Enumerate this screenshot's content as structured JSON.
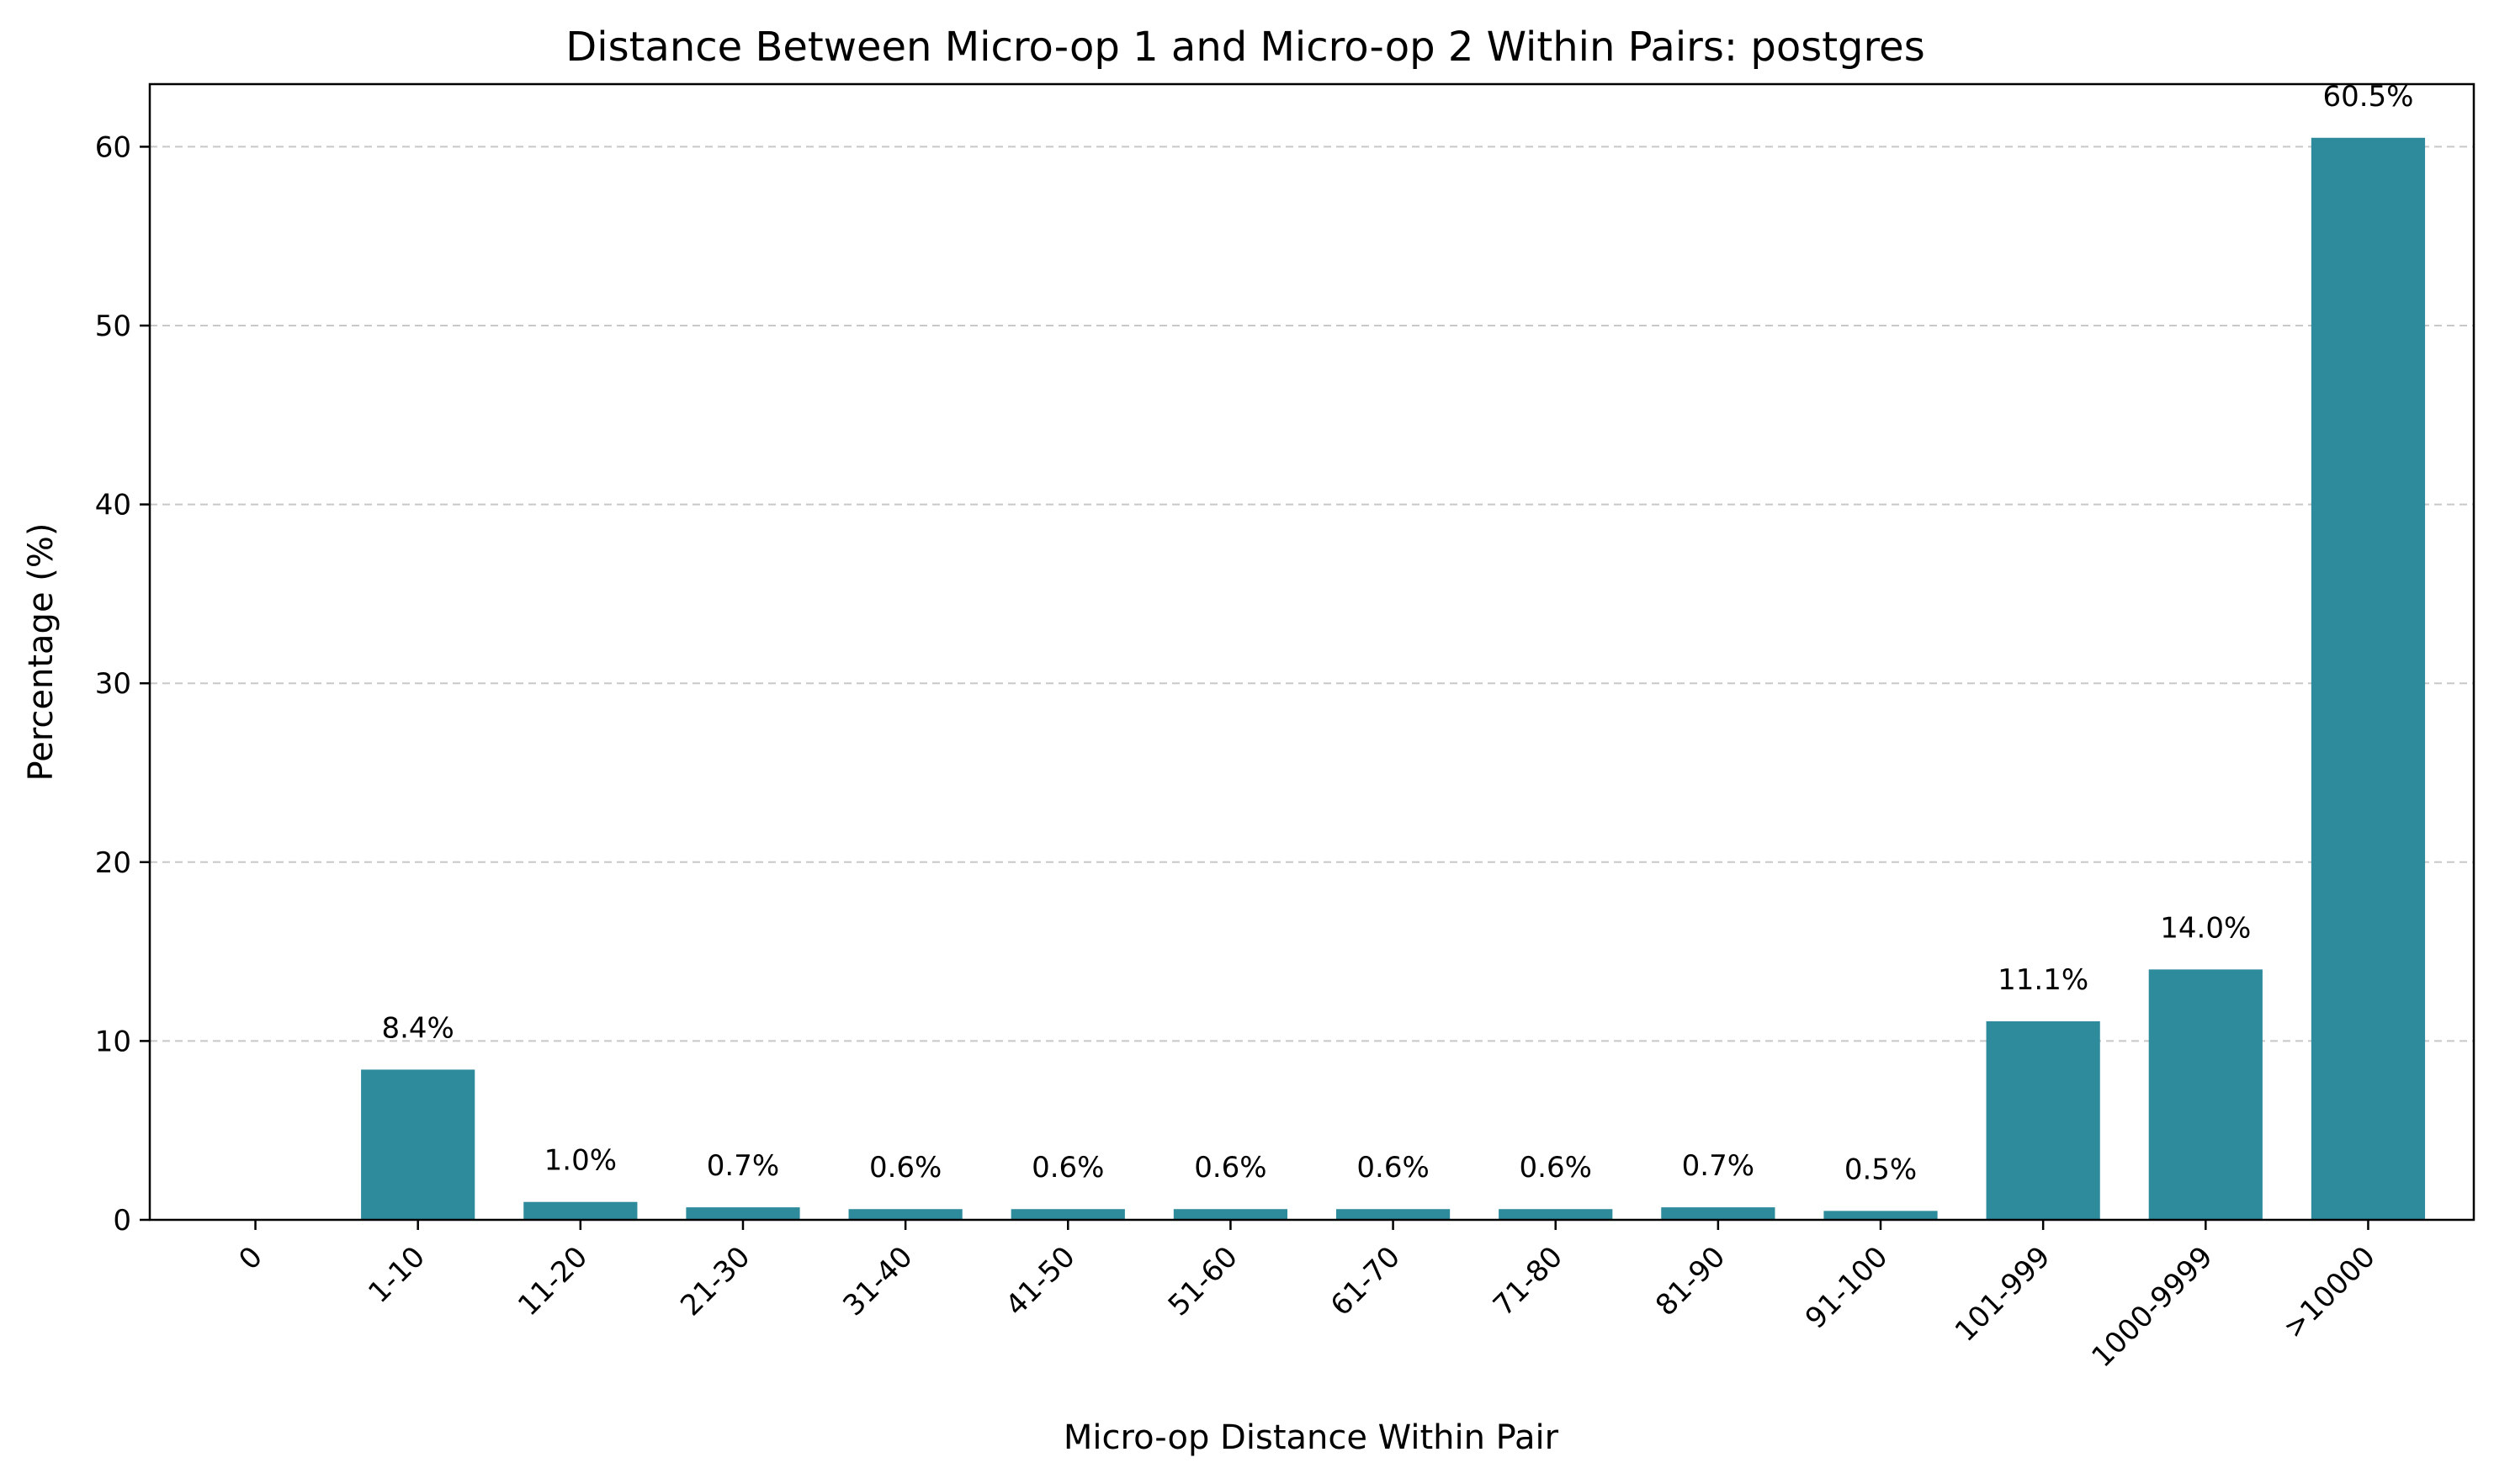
{
  "chart_data": {
    "type": "bar",
    "title": "Distance Between Micro-op 1 and Micro-op 2 Within Pairs: postgres",
    "xlabel": "Micro-op Distance Within Pair",
    "ylabel": "Percentage (%)",
    "categories": [
      "0",
      "1-10",
      "11-20",
      "21-30",
      "31-40",
      "41-50",
      "51-60",
      "61-70",
      "71-80",
      "81-90",
      "91-100",
      "101-999",
      "1000-9999",
      ">10000"
    ],
    "values": [
      0.0,
      8.4,
      1.0,
      0.7,
      0.6,
      0.6,
      0.6,
      0.6,
      0.6,
      0.7,
      0.5,
      11.1,
      14.0,
      60.5
    ],
    "data_labels": [
      "",
      "8.4%",
      "1.0%",
      "0.7%",
      "0.6%",
      "0.6%",
      "0.6%",
      "0.6%",
      "0.6%",
      "0.7%",
      "0.5%",
      "11.1%",
      "14.0%",
      "60.5%"
    ],
    "yticks": [
      0,
      10,
      20,
      30,
      40,
      50,
      60
    ],
    "ylim": [
      0,
      63.5
    ],
    "grid": "y-dashed",
    "bar_color": "#2e8b9c",
    "legend": "none",
    "xtick_rotation": 45
  }
}
